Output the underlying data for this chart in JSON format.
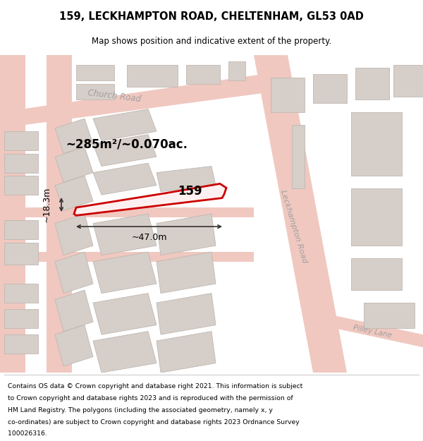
{
  "title": "159, LECKHAMPTON ROAD, CHELTENHAM, GL53 0AD",
  "subtitle": "Map shows position and indicative extent of the property.",
  "footer_lines": [
    "Contains OS data © Crown copyright and database right 2021. This information is subject",
    "to Crown copyright and database rights 2023 and is reproduced with the permission of",
    "HM Land Registry. The polygons (including the associated geometry, namely x, y",
    "co-ordinates) are subject to Crown copyright and database rights 2023 Ordnance Survey",
    "100026316."
  ],
  "area_label": "~285m²/~0.070ac.",
  "property_number": "159",
  "width_label": "~47.0m",
  "height_label": "~18.3m",
  "map_bg": "#f2ede9",
  "road_color": "#f0c8c0",
  "road_edge": "#e8a898",
  "building_color": "#d6cec8",
  "building_edge": "#bfb8b2",
  "highlight_color": "#cc0000",
  "highlight_fill": "#fdf0f0",
  "text_gray": "#a0a0a0",
  "dim_color": "#333333"
}
